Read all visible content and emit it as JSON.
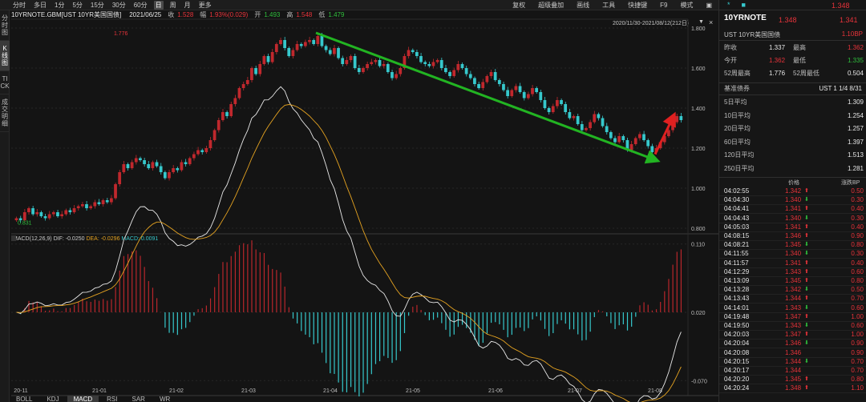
{
  "toolbar": {
    "left_items": [
      "分时",
      "多日",
      "1分",
      "5分",
      "15分",
      "30分",
      "60分",
      "日",
      "周",
      "月",
      "更多"
    ],
    "active_item": "日",
    "right_items": [
      "复权",
      "超级叠加",
      "画线",
      "工具",
      "快捷键",
      "F9",
      "模式",
      "▣"
    ]
  },
  "sidenav": [
    {
      "label": "分时图",
      "active": false
    },
    {
      "label": "K线图",
      "active": true
    },
    {
      "label": "TICK",
      "active": false
    },
    {
      "label": "成交明细",
      "active": false
    }
  ],
  "info": {
    "symbol": "10YRNOTE.GBM[UST 10YR美国国债]",
    "date": "2021/06/25",
    "close_label": "收",
    "close": "1.528",
    "change_label": "幅",
    "change": "1.93%(0.029)",
    "open_label": "开",
    "open": "1.493",
    "high_label": "高",
    "high": "1.548",
    "low_label": "低",
    "low": "1.479"
  },
  "date_range": "2020/11/30-2021/08/12(212日)",
  "macd_header": {
    "name": "MACD(12,26,9)",
    "dif_label": "DIF:",
    "dif": "-0.0250",
    "dea_label": "DEA:",
    "dea": "-0.0296",
    "macd_label": "MACD:",
    "macd": "0.0091"
  },
  "bottom_tabs": [
    "BOLL",
    "KDJ",
    "MACD",
    "RSI",
    "SAR",
    "WR"
  ],
  "bottom_active": "MACD",
  "chart_data": [
    {
      "type": "candlestick",
      "title": "10YRNOTE daily K",
      "x_ticks": [
        "20-11",
        "21-01",
        "21-02",
        "21-03",
        "21-04",
        "21-05",
        "21-06",
        "21-07",
        "21-08"
      ],
      "y_ticks": [
        "1.800",
        "1.600",
        "1.400",
        "1.200",
        "1.000",
        "0.800"
      ],
      "ylim": [
        0.78,
        1.82
      ],
      "max_label": "1.776",
      "min_label": "0.831",
      "annotations": [
        {
          "type": "arrow",
          "color": "#22b422",
          "from": [
            0.135,
            1.776
          ],
          "to": [
            0.745,
            1.14
          ]
        },
        {
          "type": "arrow",
          "color": "#e02020",
          "from": [
            0.76,
            1.17
          ],
          "to": [
            0.86,
            1.36
          ]
        }
      ],
      "candles": [
        0.85,
        0.84,
        0.88,
        0.9,
        0.87,
        0.88,
        0.86,
        0.85,
        0.87,
        0.88,
        0.86,
        0.87,
        0.89,
        0.88,
        0.9,
        0.91,
        0.92,
        0.9,
        0.91,
        0.93,
        0.92,
        0.94,
        0.93,
        0.95,
        1.02,
        1.08,
        1.12,
        1.1,
        1.13,
        1.15,
        1.14,
        1.12,
        1.1,
        1.13,
        1.11,
        1.08,
        1.05,
        1.08,
        1.1,
        1.09,
        1.13,
        1.12,
        1.15,
        1.17,
        1.19,
        1.18,
        1.2,
        1.24,
        1.29,
        1.34,
        1.38,
        1.36,
        1.42,
        1.45,
        1.5,
        1.52,
        1.54,
        1.6,
        1.57,
        1.62,
        1.66,
        1.63,
        1.68,
        1.72,
        1.74,
        1.7,
        1.66,
        1.69,
        1.72,
        1.71,
        1.73,
        1.74,
        1.72,
        1.76,
        1.71,
        1.69,
        1.67,
        1.7,
        1.65,
        1.62,
        1.64,
        1.66,
        1.6,
        1.58,
        1.6,
        1.62,
        1.63,
        1.64,
        1.61,
        1.62,
        1.58,
        1.55,
        1.57,
        1.6,
        1.66,
        1.69,
        1.68,
        1.66,
        1.63,
        1.62,
        1.61,
        1.63,
        1.64,
        1.6,
        1.58,
        1.56,
        1.59,
        1.62,
        1.6,
        1.57,
        1.55,
        1.52,
        1.5,
        1.53,
        1.56,
        1.58,
        1.54,
        1.52,
        1.49,
        1.46,
        1.49,
        1.51,
        1.48,
        1.45,
        1.47,
        1.5,
        1.48,
        1.44,
        1.4,
        1.38,
        1.41,
        1.44,
        1.42,
        1.38,
        1.35,
        1.36,
        1.32,
        1.29,
        1.3,
        1.33,
        1.37,
        1.35,
        1.31,
        1.28,
        1.25,
        1.23,
        1.26,
        1.24,
        1.19,
        1.22,
        1.25,
        1.27,
        1.24,
        1.21,
        1.18,
        1.2,
        1.23,
        1.26,
        1.29,
        1.33,
        1.36,
        1.34
      ]
    },
    {
      "type": "line",
      "title": "MACD(12,26,9)",
      "y_ticks": [
        "0.110",
        "0.020",
        "-0.070"
      ],
      "ylim": [
        -0.075,
        0.115
      ],
      "series": [
        {
          "name": "DIF",
          "color": "#e8e8e8"
        },
        {
          "name": "DEA",
          "color": "#e5a321"
        }
      ]
    }
  ],
  "right_panel": {
    "top_icons": [
      "*",
      "■"
    ],
    "top_price": "1.348",
    "title": "10YRNOTE",
    "last1": "1.348",
    "last2": "1.341",
    "subtitle": "UST 10YR美国国债",
    "bp": "1.10BP",
    "rows": [
      {
        "l1": "昨收",
        "v1": "1.337",
        "c1": "white",
        "l2": "最高",
        "v2": "1.362",
        "c2": "red"
      },
      {
        "l1": "今开",
        "v1": "1.362",
        "c1": "red",
        "l2": "最低",
        "v2": "1.335",
        "c2": "green"
      },
      {
        "l1": "52周最高",
        "v1": "1.776",
        "c1": "white",
        "l2": "52周最低",
        "v2": "0.504",
        "c2": "white"
      }
    ],
    "bench_label": "基准债券",
    "bench_value": "UST 1 1/4 8/31",
    "averages": [
      {
        "label": "5日平均",
        "value": "1.309"
      },
      {
        "label": "10日平均",
        "value": "1.254"
      },
      {
        "label": "20日平均",
        "value": "1.257"
      },
      {
        "label": "60日平均",
        "value": "1.397"
      },
      {
        "label": "120日平均",
        "value": "1.513"
      },
      {
        "label": "250日平均",
        "value": "1.281"
      }
    ],
    "trades_header": {
      "price": "价格",
      "bp": "涨跌BP"
    },
    "trades": [
      {
        "time": "04:02:55",
        "price": "1.342",
        "dir": "up",
        "bp": "0.50"
      },
      {
        "time": "04:04:30",
        "price": "1.340",
        "dir": "down",
        "bp": "0.30"
      },
      {
        "time": "04:04:41",
        "price": "1.341",
        "dir": "up",
        "bp": "0.40"
      },
      {
        "time": "04:04:43",
        "price": "1.340",
        "dir": "down",
        "bp": "0.30"
      },
      {
        "time": "04:05:03",
        "price": "1.341",
        "dir": "up",
        "bp": "0.40"
      },
      {
        "time": "04:08:15",
        "price": "1.346",
        "dir": "up",
        "bp": "0.90"
      },
      {
        "time": "04:08:21",
        "price": "1.345",
        "dir": "down",
        "bp": "0.80"
      },
      {
        "time": "04:11:55",
        "price": "1.340",
        "dir": "down",
        "bp": "0.30"
      },
      {
        "time": "04:11:57",
        "price": "1.341",
        "dir": "up",
        "bp": "0.40"
      },
      {
        "time": "04:12:29",
        "price": "1.343",
        "dir": "up",
        "bp": "0.60"
      },
      {
        "time": "04:13:09",
        "price": "1.345",
        "dir": "up",
        "bp": "0.80"
      },
      {
        "time": "04:13:28",
        "price": "1.342",
        "dir": "down",
        "bp": "0.50"
      },
      {
        "time": "04:13:43",
        "price": "1.344",
        "dir": "up",
        "bp": "0.70"
      },
      {
        "time": "04:14:01",
        "price": "1.343",
        "dir": "down",
        "bp": "0.60"
      },
      {
        "time": "04:19:48",
        "price": "1.347",
        "dir": "up",
        "bp": "1.00"
      },
      {
        "time": "04:19:50",
        "price": "1.343",
        "dir": "down",
        "bp": "0.60"
      },
      {
        "time": "04:20:03",
        "price": "1.347",
        "dir": "up",
        "bp": "1.00"
      },
      {
        "time": "04:20:04",
        "price": "1.346",
        "dir": "down",
        "bp": "0.90"
      },
      {
        "time": "04:20:08",
        "price": "1.346",
        "dir": "",
        "bp": "0.90"
      },
      {
        "time": "04:20:15",
        "price": "1.344",
        "dir": "down",
        "bp": "0.70"
      },
      {
        "time": "04:20:17",
        "price": "1.344",
        "dir": "",
        "bp": "0.70"
      },
      {
        "time": "04:20:20",
        "price": "1.345",
        "dir": "up",
        "bp": "0.80"
      },
      {
        "time": "04:20:24",
        "price": "1.348",
        "dir": "up",
        "bp": "1.10"
      }
    ]
  },
  "colors": {
    "up": "#e8333a",
    "down": "#2fbf3c",
    "candle_up": "#c0282d",
    "candle_down": "#36c8cc",
    "bg": "#141414"
  }
}
